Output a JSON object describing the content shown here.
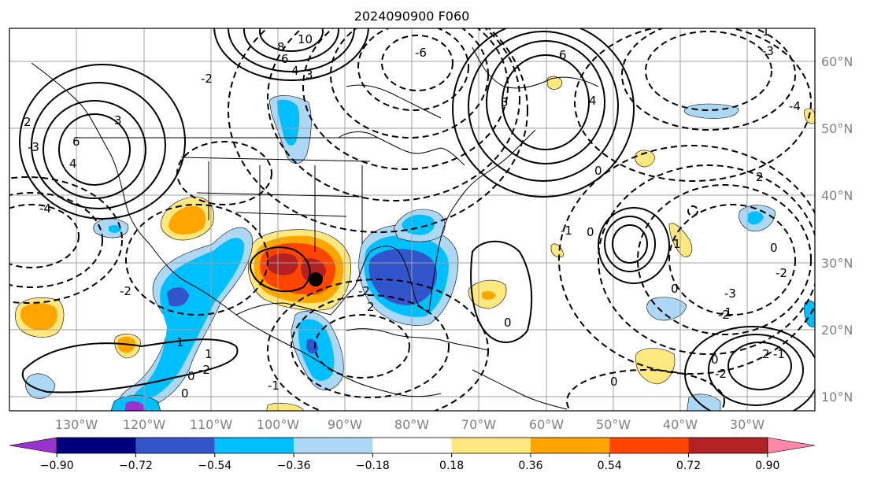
{
  "title": "2024090900 F060",
  "map": {
    "lat_labels": [
      "60°N",
      "50°N",
      "40°N",
      "30°N",
      "20°N",
      "10°N"
    ],
    "lon_labels": [
      "130°W",
      "120°W",
      "110°W",
      "100°W",
      "90°W",
      "80°W",
      "70°W",
      "60°W",
      "50°W",
      "40°W",
      "30°W"
    ],
    "contour_labels": [
      "6",
      "4",
      "3",
      "2",
      "-2",
      "-2",
      "-3",
      "-4",
      "10",
      "8",
      "6",
      "4",
      "3",
      "6",
      "-6",
      "4",
      "3",
      "0",
      "-4",
      "-3",
      "2",
      "1",
      "0",
      "-1",
      "-2",
      "0",
      "1",
      "0",
      "-2",
      "-3",
      "-1",
      "-1",
      "-2",
      "0",
      "2",
      "1",
      "0",
      "0",
      "-2",
      "1",
      "-1",
      "0",
      "2",
      "-2",
      "0"
    ],
    "colors": {
      "coast": "#000000",
      "grid": "#a0a0a0"
    }
  },
  "colorbar": {
    "ticks": [
      "−0.90",
      "−0.72",
      "−0.54",
      "−0.36",
      "−0.18",
      "0.18",
      "0.36",
      "0.54",
      "0.72",
      "0.90"
    ],
    "colors": [
      "#9933cc",
      "#00007f",
      "#3355cc",
      "#00bfff",
      "#add8f5",
      "#ffffff",
      "#ffe87f",
      "#ffa500",
      "#ff4500",
      "#b22222",
      "#ff88aa"
    ]
  }
}
